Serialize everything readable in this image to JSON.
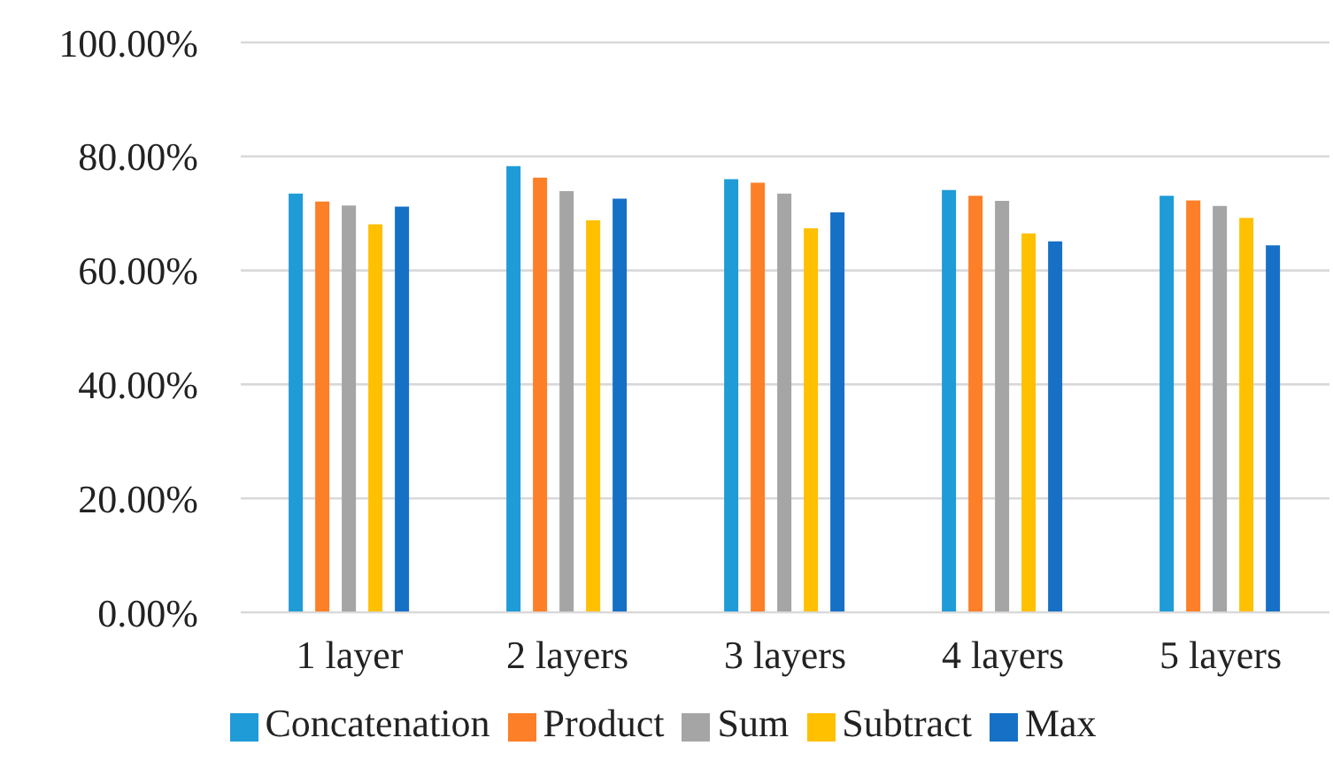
{
  "chart_data": {
    "type": "bar",
    "categories": [
      "1 layer",
      "2 layers",
      "3 layers",
      "4 layers",
      "5 layers"
    ],
    "series": [
      {
        "name": "Concatenation",
        "color": "#1f9bd7",
        "values": [
          73.5,
          78.3,
          76.0,
          74.1,
          73.1
        ]
      },
      {
        "name": "Product",
        "color": "#fd7f28",
        "values": [
          72.1,
          76.3,
          75.4,
          73.1,
          72.3
        ]
      },
      {
        "name": "Sum",
        "color": "#a5a5a5",
        "values": [
          71.4,
          73.9,
          73.5,
          72.2,
          71.3
        ]
      },
      {
        "name": "Subtract",
        "color": "#ffc000",
        "values": [
          68.1,
          68.8,
          67.4,
          66.5,
          69.2
        ]
      },
      {
        "name": "Max",
        "color": "#1670c6",
        "values": [
          71.2,
          72.6,
          70.2,
          65.1,
          64.4
        ]
      }
    ],
    "ylim": [
      0,
      100
    ],
    "yticks": [
      {
        "value": 0,
        "label": "0.00%"
      },
      {
        "value": 20,
        "label": "20.00%"
      },
      {
        "value": 40,
        "label": "40.00%"
      },
      {
        "value": 60,
        "label": "60.00%"
      },
      {
        "value": 80,
        "label": "80.00%"
      },
      {
        "value": 100,
        "label": "100.00%"
      }
    ],
    "grid": "y",
    "legend": "bottom"
  }
}
